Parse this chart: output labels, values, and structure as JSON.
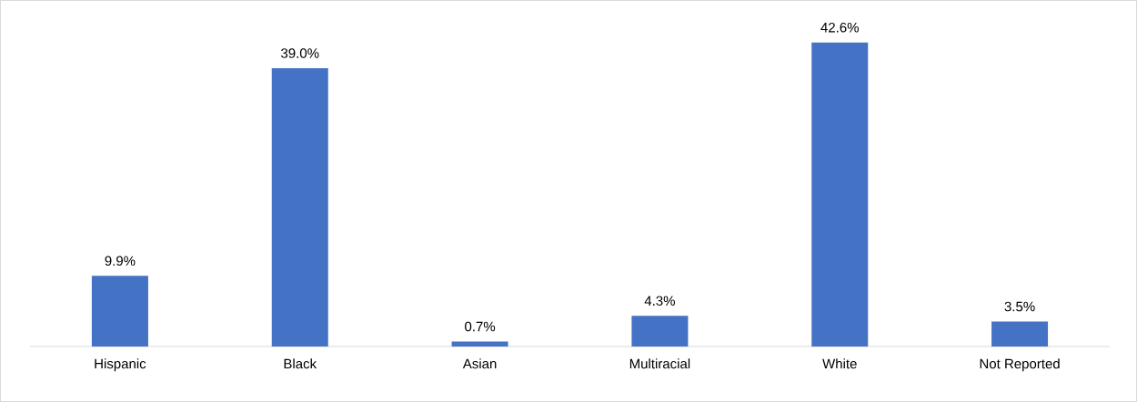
{
  "chart_data": {
    "type": "bar",
    "categories": [
      "Hispanic",
      "Black",
      "Asian",
      "Multiracial",
      "White",
      "Not Reported"
    ],
    "values": [
      9.9,
      39.0,
      0.7,
      4.3,
      42.6,
      3.5
    ],
    "value_labels": [
      "9.9%",
      "39.0%",
      "0.7%",
      "4.3%",
      "42.6%",
      "3.5%"
    ],
    "color": "#4472c4"
  }
}
